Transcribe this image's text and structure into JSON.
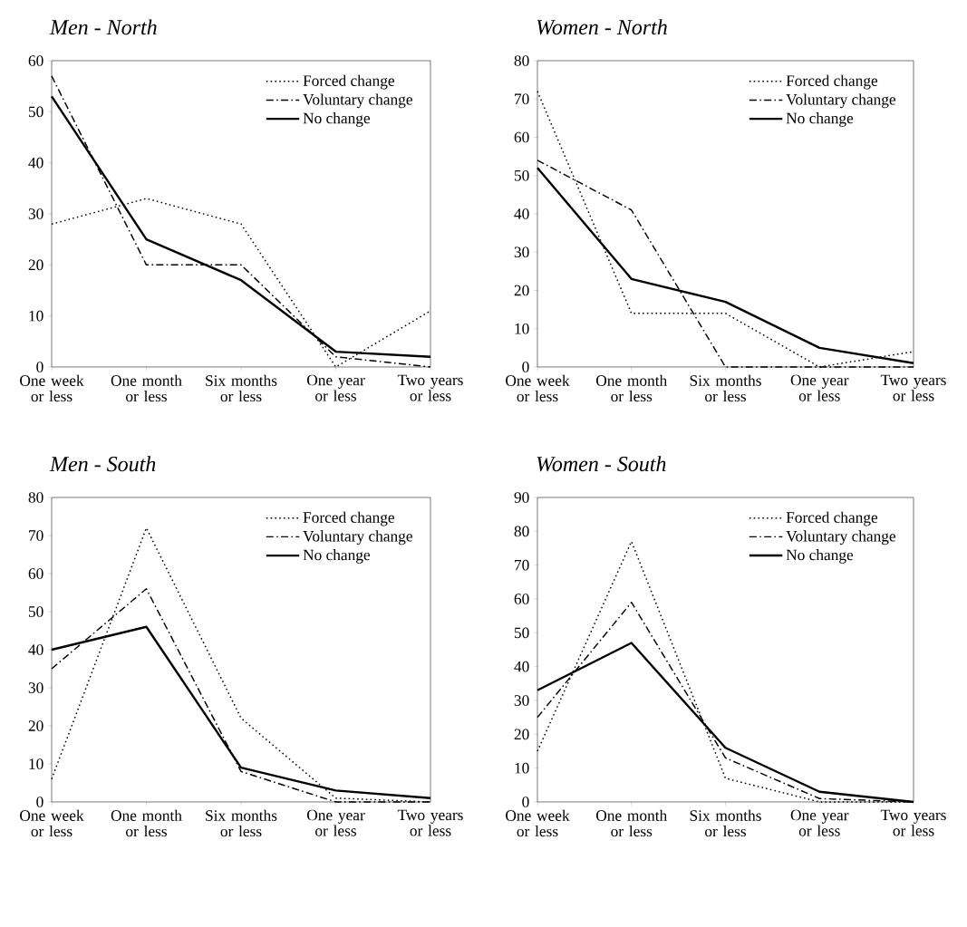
{
  "chart_data": [
    {
      "type": "line",
      "title": "Men - North",
      "categories": [
        "One week or less",
        "One month or less",
        "Six months or less",
        "One year or less",
        "Two years or less"
      ],
      "ylim": [
        0,
        60
      ],
      "yticks": [
        0,
        10,
        20,
        30,
        40,
        50,
        60
      ],
      "legend": "top right",
      "grid": false,
      "series": [
        {
          "name": "Forced change",
          "color": "#000000",
          "line_style": "dotted",
          "values": [
            28,
            33,
            28,
            0,
            11
          ]
        },
        {
          "name": "Voluntary change",
          "color": "#000000",
          "line_style": "dashed",
          "values": [
            57,
            20,
            20,
            2,
            0
          ]
        },
        {
          "name": "No change",
          "color": "#000000",
          "line_style": "solid",
          "values": [
            53,
            25,
            17,
            3,
            2
          ]
        }
      ]
    },
    {
      "type": "line",
      "title": "Women - North",
      "categories": [
        "One week or less",
        "One month or less",
        "Six months or less",
        "One year or less",
        "Two years or less"
      ],
      "ylim": [
        0,
        80
      ],
      "yticks": [
        0,
        10,
        20,
        30,
        40,
        50,
        60,
        70,
        80
      ],
      "legend": "top right",
      "grid": false,
      "series": [
        {
          "name": "Forced change",
          "color": "#000000",
          "line_style": "dotted",
          "values": [
            72,
            14,
            14,
            0,
            4
          ]
        },
        {
          "name": "Voluntary change",
          "color": "#000000",
          "line_style": "dashed",
          "values": [
            54,
            41,
            0,
            0,
            0
          ]
        },
        {
          "name": "No change",
          "color": "#000000",
          "line_style": "solid",
          "values": [
            52,
            23,
            17,
            5,
            1
          ]
        }
      ]
    },
    {
      "type": "line",
      "title": "Men - South",
      "categories": [
        "One week or less",
        "One month or less",
        "Six months or less",
        "One year or less",
        "Two years or less"
      ],
      "ylim": [
        0,
        80
      ],
      "yticks": [
        0,
        10,
        20,
        30,
        40,
        50,
        60,
        70,
        80
      ],
      "legend": "top right",
      "grid": false,
      "series": [
        {
          "name": "Forced change",
          "color": "#000000",
          "line_style": "dotted",
          "values": [
            6,
            72,
            22,
            1,
            0
          ]
        },
        {
          "name": "Voluntary change",
          "color": "#000000",
          "line_style": "dashed",
          "values": [
            35,
            56,
            8,
            0,
            0
          ]
        },
        {
          "name": "No change",
          "color": "#000000",
          "line_style": "solid",
          "values": [
            40,
            46,
            9,
            3,
            1
          ]
        }
      ]
    },
    {
      "type": "line",
      "title": "Women - South",
      "categories": [
        "One week or less",
        "One month or less",
        "Six months or less",
        "One year or less",
        "Two years or less"
      ],
      "ylim": [
        0,
        90
      ],
      "yticks": [
        0,
        10,
        20,
        30,
        40,
        50,
        60,
        70,
        80,
        90
      ],
      "legend": "top right",
      "grid": false,
      "series": [
        {
          "name": "Forced change",
          "color": "#000000",
          "line_style": "dotted",
          "values": [
            15,
            77,
            7,
            0,
            0
          ]
        },
        {
          "name": "Voluntary change",
          "color": "#000000",
          "line_style": "dashed",
          "values": [
            25,
            59,
            13,
            1,
            0
          ]
        },
        {
          "name": "No change",
          "color": "#000000",
          "line_style": "solid",
          "values": [
            33,
            47,
            16,
            3,
            0
          ]
        }
      ]
    }
  ]
}
